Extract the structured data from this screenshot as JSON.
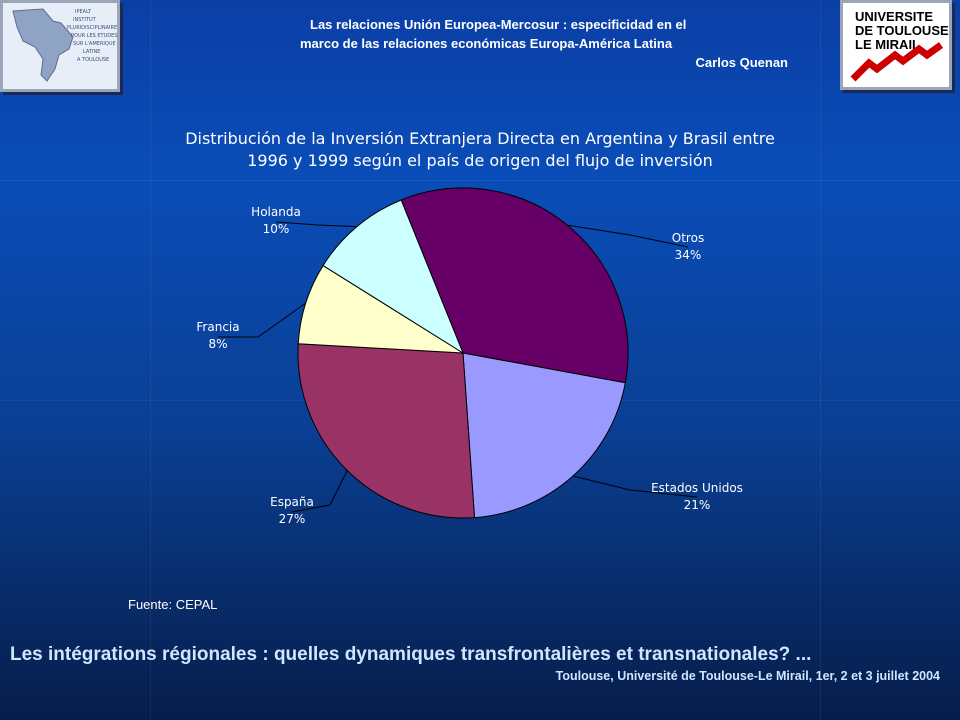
{
  "header": {
    "line1": "Las relaciones Unión Europea-Mercosur : especificidad en el",
    "line2": "marco de las relaciones económicas Europa-América Latina",
    "author": "Carlos Quenan"
  },
  "logos": {
    "left": "IPEALT Institut Pluridisciplinaire pour les Études sur l'Amérique Latine à Toulouse",
    "right_line1": "UNIVERSITE",
    "right_line2": "DE TOULOUSE",
    "right_line3": "LE MIRAIL"
  },
  "chart_data": {
    "type": "pie",
    "title_line1": "Distribución de la Inversión Extranjera Directa en Argentina y Brasil entre",
    "title_line2": "1996 y 1999 según el país de origen del flujo de inversión",
    "slices": [
      {
        "label": "Otros",
        "value": 34,
        "display": "34%",
        "color": "#660066"
      },
      {
        "label": "Estados Unidos",
        "value": 21,
        "display": "21%",
        "color": "#9999ff"
      },
      {
        "label": "España",
        "value": 27,
        "display": "27%",
        "color": "#993366"
      },
      {
        "label": "Francia",
        "value": 8,
        "display": "8%",
        "color": "#ffffcc"
      },
      {
        "label": "Holanda",
        "value": 10,
        "display": "10%",
        "color": "#ccffff"
      }
    ]
  },
  "source": "Fuente: CEPAL",
  "footer": {
    "title": "Les intégrations régionales : quelles dynamiques transfrontalières et transnationales? ...",
    "subtitle": "Toulouse, Université de Toulouse-Le Mirail, 1er, 2 et 3 juillet 2004"
  }
}
